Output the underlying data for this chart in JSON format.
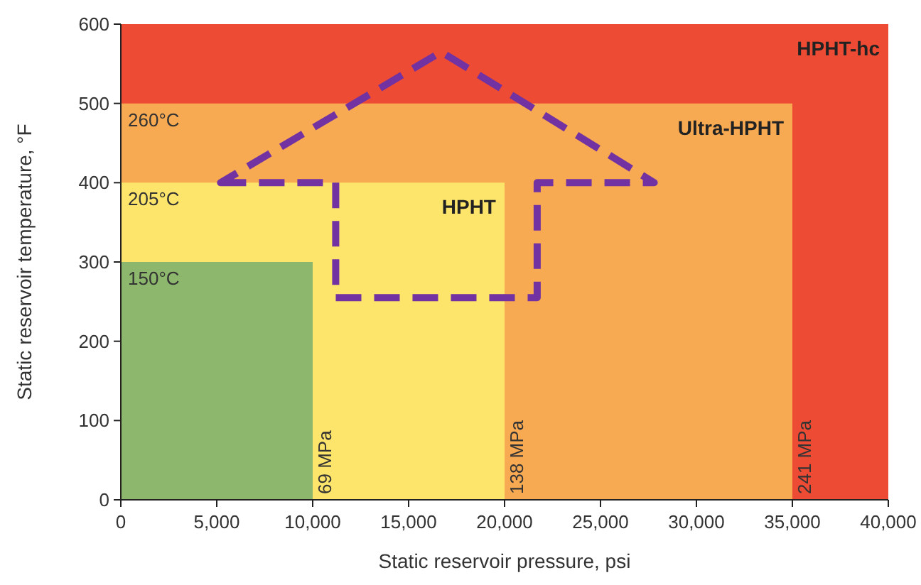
{
  "chart_data": {
    "type": "area",
    "xlabel": "Static reservoir pressure, psi",
    "ylabel": "Static reservoir temperature, °F",
    "xlim": [
      0,
      40000
    ],
    "ylim": [
      0,
      600
    ],
    "xticks": [
      0,
      {
        "value": 5000,
        "label": "5,000"
      },
      {
        "value": 10000,
        "label": "10,000"
      },
      {
        "value": 15000,
        "label": "15,000"
      },
      {
        "value": 20000,
        "label": "20,000"
      },
      {
        "value": 25000,
        "label": "25,000"
      },
      {
        "value": 30000,
        "label": "30,000"
      },
      {
        "value": 35000,
        "label": "35,000"
      },
      {
        "value": 40000,
        "label": "40,000"
      }
    ],
    "yticks": [
      0,
      100,
      200,
      300,
      400,
      500,
      600
    ],
    "grid": false,
    "series": [
      {
        "name": "HPHT-hc",
        "color": "#ee4b35",
        "x": [
          0,
          40000
        ],
        "values": [
          600,
          600
        ]
      },
      {
        "name": "Ultra-HPHT",
        "color": "#f8aa52",
        "x": [
          0,
          35000
        ],
        "values": [
          500,
          500
        ]
      },
      {
        "name": "HPHT",
        "color": "#fde46a",
        "x": [
          0,
          20000
        ],
        "values": [
          400,
          400
        ]
      },
      {
        "color": "#8cb76d",
        "x": [
          0,
          10000
        ],
        "values": [
          300,
          300
        ]
      }
    ],
    "annotations": [
      {
        "text": "260°C",
        "x": 0,
        "y": 500
      },
      {
        "text": "205°C",
        "x": 0,
        "y": 400
      },
      {
        "text": "150°C",
        "x": 0,
        "y": 300
      },
      {
        "text": "69 MPa",
        "x": 10000,
        "y": 0
      },
      {
        "text": "138 MPa",
        "x": 20000,
        "y": 0
      },
      {
        "text": "241 MPa",
        "x": 35000,
        "y": 0
      }
    ]
  }
}
